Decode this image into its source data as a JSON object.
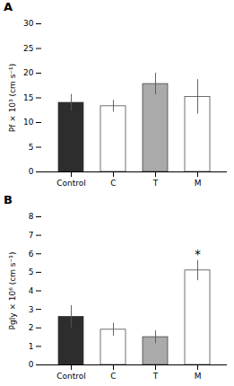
{
  "chart_data": [
    {
      "type": "bar",
      "title": "A",
      "categories": [
        "Control",
        "C",
        "T",
        "M"
      ],
      "values": [
        14.0,
        13.3,
        17.8,
        15.2
      ],
      "errors": [
        1.7,
        1.2,
        2.2,
        3.5
      ],
      "colors": [
        "#2d2d2d",
        "white",
        "#aaaaaa",
        "white"
      ],
      "ylabel": "Pf × 10³ (cm s⁻¹)",
      "ylim": [
        0,
        30
      ],
      "yticks": [
        0,
        5,
        10,
        15,
        20,
        25,
        30
      ]
    },
    {
      "type": "bar",
      "title": "B",
      "categories": [
        "Control",
        "C",
        "T",
        "M"
      ],
      "values": [
        2.6,
        1.9,
        1.5,
        5.1
      ],
      "errors": [
        0.6,
        0.35,
        0.35,
        0.55
      ],
      "colors": [
        "#2d2d2d",
        "white",
        "#aaaaaa",
        "white"
      ],
      "ylabel": "Pgly × 10⁶ (cm s⁻¹)",
      "ylim": [
        0,
        8
      ],
      "yticks": [
        0,
        1,
        2,
        3,
        4,
        5,
        6,
        7,
        8
      ],
      "annotations": [
        {
          "text": "*",
          "category": "M"
        }
      ]
    }
  ]
}
